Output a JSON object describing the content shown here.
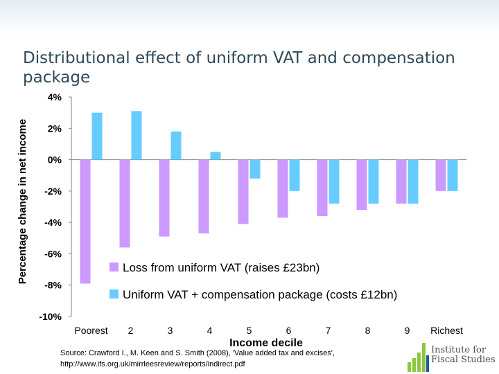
{
  "slide": {
    "title": "Distributional effect of uniform VAT and compensation package"
  },
  "source": {
    "line1": "Source: Crawford I., M. Keen and S. Smith (2008), 'Value added tax and excises',",
    "line2": "http://www.ifs.org.uk/mirrleesreview/reports/indirect.pdf"
  },
  "logo": {
    "line1": "Institute for",
    "line2": "Fiscal Studies"
  },
  "colors": {
    "loss": "#cc99ff",
    "compensation": "#66ccff",
    "logo_green": "#8dc63f",
    "logo_blue": "#1e5aa8"
  },
  "chart_data": {
    "type": "bar",
    "title": "",
    "xlabel": "Income decile",
    "ylabel": "Percentage change in net income",
    "categories": [
      "Poorest",
      "2",
      "3",
      "4",
      "5",
      "6",
      "7",
      "8",
      "9",
      "Richest"
    ],
    "series": [
      {
        "name": "Loss from uniform VAT (raises £23bn)",
        "values": [
          -7.9,
          -5.6,
          -4.9,
          -4.7,
          -4.1,
          -3.7,
          -3.6,
          -3.2,
          -2.8,
          -2.0
        ]
      },
      {
        "name": "Uniform VAT + compensation package (costs £12bn)",
        "values": [
          3.0,
          3.1,
          1.8,
          0.5,
          -1.2,
          -2.0,
          -2.8,
          -2.8,
          -2.8,
          -2.0
        ]
      }
    ],
    "ylim": [
      -10,
      4
    ],
    "yticks": [
      4,
      2,
      0,
      -2,
      -4,
      -6,
      -8,
      -10
    ],
    "ytick_format": "%",
    "grid": false,
    "legend_position": "inside-bottom-right"
  }
}
